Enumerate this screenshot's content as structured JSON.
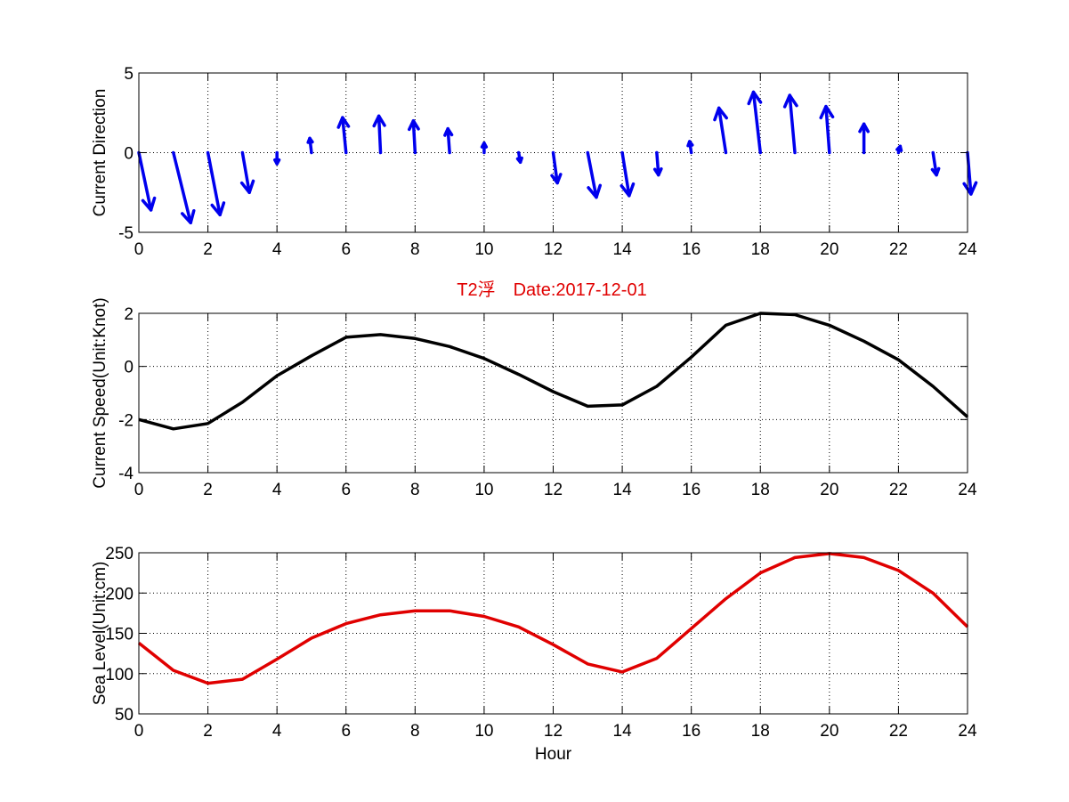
{
  "figure": {
    "title": "T2浮　Date:2017-12-01",
    "title_color": "#e00000"
  },
  "chart_data": [
    {
      "type": "quiver",
      "ylabel": "Current Direction",
      "xlabel": "",
      "xlim": [
        0,
        24
      ],
      "ylim": [
        -5,
        5
      ],
      "xticks": [
        0,
        2,
        4,
        6,
        8,
        10,
        12,
        14,
        16,
        18,
        20,
        22,
        24
      ],
      "yticks": [
        -5,
        0,
        5
      ],
      "grid": true,
      "color": "#0000ee",
      "x": [
        0,
        1,
        2,
        3,
        4,
        5,
        6,
        7,
        8,
        9,
        10,
        11,
        12,
        13,
        14,
        15,
        16,
        17,
        18,
        19,
        20,
        21,
        22,
        23,
        24
      ],
      "u": [
        0.35,
        0.5,
        0.35,
        0.2,
        0.0,
        -0.05,
        -0.1,
        -0.05,
        -0.05,
        -0.05,
        0.0,
        0.05,
        0.12,
        0.25,
        0.2,
        0.05,
        -0.05,
        -0.2,
        -0.2,
        -0.15,
        -0.1,
        0.0,
        0.05,
        0.1,
        0.1
      ],
      "v": [
        -3.6,
        -4.4,
        -3.9,
        -2.5,
        -0.7,
        0.9,
        2.2,
        2.3,
        2.0,
        1.5,
        0.6,
        -0.6,
        -1.9,
        -2.8,
        -2.7,
        -1.4,
        0.7,
        2.8,
        3.8,
        3.6,
        2.9,
        1.8,
        0.4,
        -1.4,
        -2.6
      ]
    },
    {
      "type": "line",
      "ylabel": "Current Speed(Unit:Knot)",
      "xlabel": "",
      "xlim": [
        0,
        24
      ],
      "ylim": [
        -4,
        2
      ],
      "xticks": [
        0,
        2,
        4,
        6,
        8,
        10,
        12,
        14,
        16,
        18,
        20,
        22,
        24
      ],
      "yticks": [
        -4,
        -2,
        0,
        2
      ],
      "grid": true,
      "color": "#000000",
      "x": [
        0,
        1,
        2,
        3,
        4,
        5,
        6,
        7,
        8,
        9,
        10,
        11,
        12,
        13,
        14,
        15,
        16,
        17,
        18,
        19,
        20,
        21,
        22,
        23,
        24
      ],
      "y": [
        -2.0,
        -2.35,
        -2.15,
        -1.35,
        -0.35,
        0.4,
        1.1,
        1.2,
        1.05,
        0.75,
        0.3,
        -0.3,
        -0.95,
        -1.5,
        -1.45,
        -0.75,
        0.35,
        1.55,
        2.0,
        1.95,
        1.55,
        0.95,
        0.25,
        -0.75,
        -1.9
      ]
    },
    {
      "type": "line",
      "ylabel": "Sea Level(Unit:cm)",
      "xlabel": "Hour",
      "xlim": [
        0,
        24
      ],
      "ylim": [
        50,
        250
      ],
      "xticks": [
        0,
        2,
        4,
        6,
        8,
        10,
        12,
        14,
        16,
        18,
        20,
        22,
        24
      ],
      "yticks": [
        50,
        100,
        150,
        200,
        250
      ],
      "grid": true,
      "color": "#e00000",
      "x": [
        0,
        1,
        2,
        3,
        4,
        5,
        6,
        7,
        8,
        9,
        10,
        11,
        12,
        13,
        14,
        15,
        16,
        17,
        18,
        19,
        20,
        21,
        22,
        23,
        24
      ],
      "y": [
        138,
        104,
        88,
        93,
        118,
        144,
        162,
        173,
        178,
        178,
        171,
        158,
        136,
        112,
        102,
        119,
        156,
        193,
        225,
        244,
        249,
        244,
        228,
        200,
        158
      ]
    }
  ]
}
